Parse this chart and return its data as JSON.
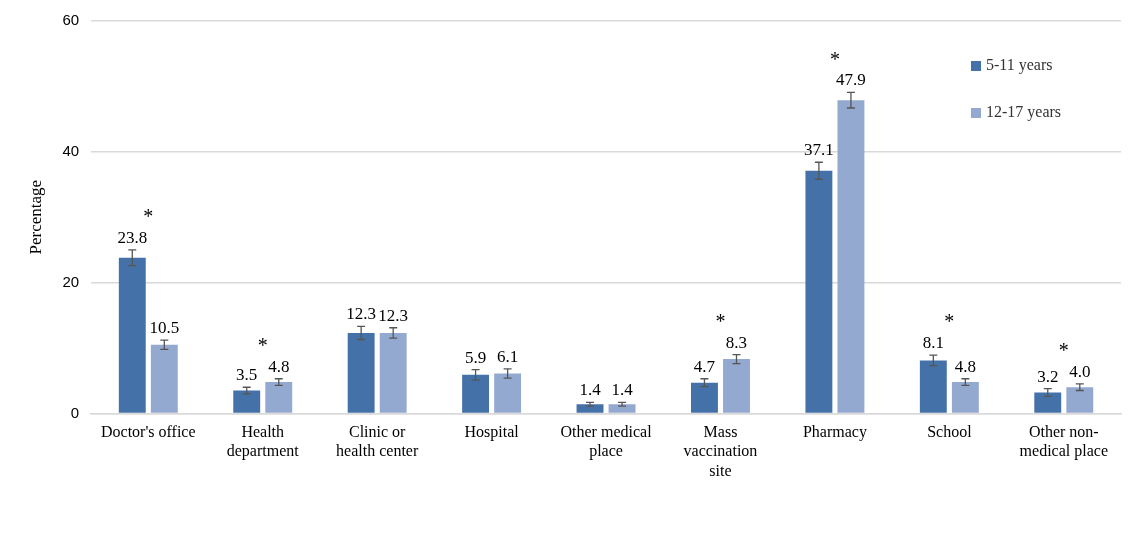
{
  "chart_data": {
    "type": "bar",
    "ylabel": "Percentage",
    "categories": [
      "Doctor's office",
      "Health department",
      "Clinic or health center",
      "Hospital",
      "Other medical place",
      "Mass vaccination site",
      "Pharmacy",
      "School",
      "Other non-medical place"
    ],
    "series": [
      {
        "name": "5-11 years",
        "color": "#4472a8",
        "values": [
          23.8,
          3.5,
          12.3,
          5.9,
          1.4,
          4.7,
          37.1,
          8.1,
          3.2
        ],
        "errors": [
          1.2,
          0.5,
          1.0,
          0.8,
          0.3,
          0.6,
          1.3,
          0.8,
          0.6
        ],
        "value_labels": [
          "23.8",
          "3.5",
          "12.3",
          "5.9",
          "1.4",
          "4.7",
          "37.1",
          "8.1",
          "3.2"
        ]
      },
      {
        "name": "12-17 years",
        "color": "#94a9d0",
        "values": [
          10.5,
          4.8,
          12.3,
          6.1,
          1.4,
          8.3,
          47.9,
          4.8,
          4.0
        ],
        "errors": [
          0.7,
          0.5,
          0.8,
          0.7,
          0.3,
          0.7,
          1.2,
          0.5,
          0.5
        ],
        "value_labels": [
          "10.5",
          "4.8",
          "12.3",
          "6.1",
          "1.4",
          "8.3",
          "47.9",
          "4.8",
          "4.0"
        ]
      }
    ],
    "ylim": [
      0,
      60
    ],
    "yticks": [
      0,
      20,
      40,
      60
    ],
    "grid": "y",
    "legend": "top right",
    "annotations": [
      "*",
      "*",
      "*",
      "*",
      "*",
      "*"
    ]
  }
}
